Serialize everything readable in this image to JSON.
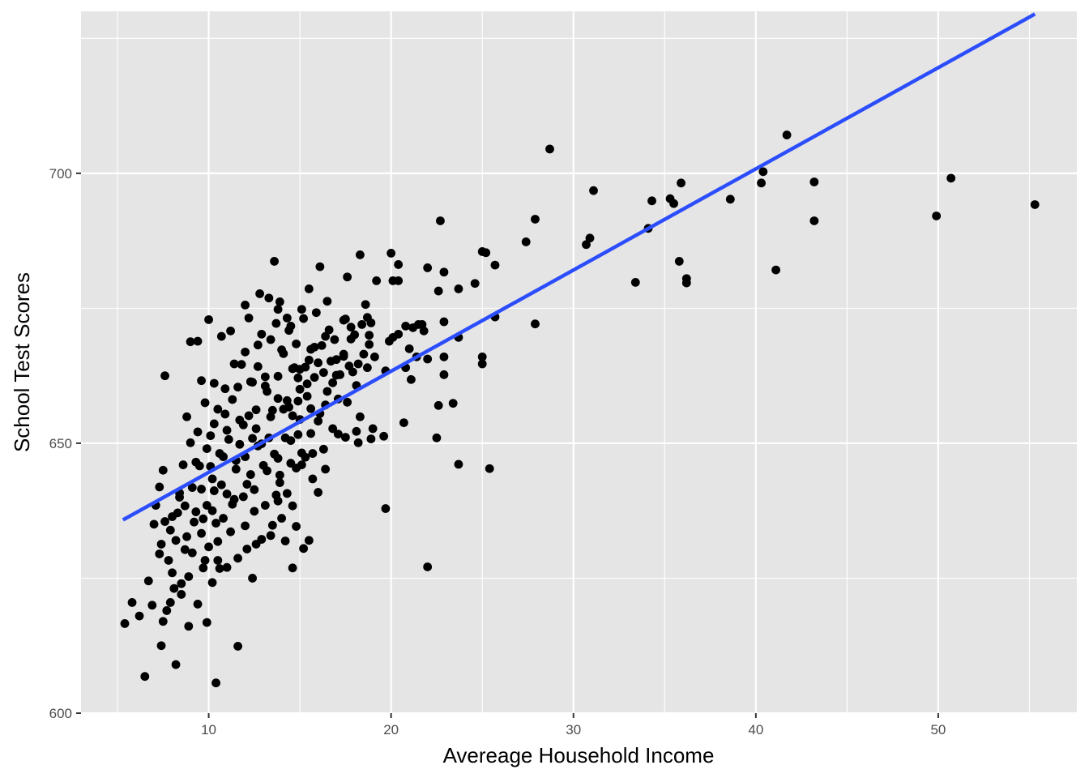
{
  "chart_data": {
    "type": "scatter",
    "title": "",
    "xlabel": "Avereage Household Income",
    "ylabel": "School Test Scores",
    "xlim": [
      3.0,
      57.6
    ],
    "ylim": [
      600,
      730
    ],
    "x_ticks": [
      10,
      20,
      30,
      40,
      50
    ],
    "x_tick_labels": [
      "10",
      "20",
      "30",
      "40",
      "50"
    ],
    "y_ticks": [
      600,
      650,
      700
    ],
    "y_tick_labels": [
      "600",
      "650",
      "700"
    ],
    "grid": true,
    "legend": "none",
    "colors": {
      "panel": "#e5e5e5",
      "grid": "#ffffff",
      "points": "#000000",
      "fit_line": "#2b4dfc",
      "tick_label": "#4d4d4d"
    },
    "fit_line": {
      "type": "linear regression",
      "x": [
        5.3,
        55.3
      ],
      "y": [
        635.8,
        729.5
      ]
    },
    "points": [
      [
        55.3,
        694.2
      ],
      [
        50.7,
        699.1
      ],
      [
        49.9,
        692.1
      ],
      [
        43.2,
        698.4
      ],
      [
        43.2,
        691.2
      ],
      [
        41.7,
        707.1
      ],
      [
        41.1,
        682.1
      ],
      [
        40.4,
        700.3
      ],
      [
        40.3,
        698.2
      ],
      [
        38.6,
        695.2
      ],
      [
        36.2,
        680.5
      ],
      [
        36.2,
        679.7
      ],
      [
        35.9,
        698.2
      ],
      [
        35.8,
        683.7
      ],
      [
        35.5,
        694.4
      ],
      [
        35.3,
        695.3
      ],
      [
        34.3,
        694.9
      ],
      [
        34.1,
        689.8
      ],
      [
        33.4,
        679.8
      ],
      [
        31.1,
        696.8
      ],
      [
        30.9,
        688.0
      ],
      [
        30.7,
        686.8
      ],
      [
        28.7,
        704.5
      ],
      [
        27.9,
        672.1
      ],
      [
        27.9,
        691.5
      ],
      [
        27.4,
        687.3
      ],
      [
        25.7,
        683.0
      ],
      [
        25.7,
        673.4
      ],
      [
        25.4,
        645.3
      ],
      [
        25.2,
        685.3
      ],
      [
        25.0,
        685.5
      ],
      [
        25.0,
        666.0
      ],
      [
        25.0,
        664.7
      ],
      [
        24.6,
        679.6
      ],
      [
        23.7,
        678.6
      ],
      [
        23.7,
        669.6
      ],
      [
        23.7,
        646.1
      ],
      [
        23.4,
        657.4
      ],
      [
        22.9,
        681.7
      ],
      [
        22.9,
        672.5
      ],
      [
        22.9,
        666.0
      ],
      [
        22.9,
        662.7
      ],
      [
        22.7,
        691.2
      ],
      [
        22.6,
        678.2
      ],
      [
        22.6,
        657.0
      ],
      [
        22.5,
        651.0
      ],
      [
        22.0,
        682.5
      ],
      [
        22.0,
        665.6
      ],
      [
        22.0,
        627.1
      ],
      [
        21.8,
        670.8
      ],
      [
        21.7,
        672.0
      ],
      [
        21.5,
        672.0
      ],
      [
        21.4,
        666.0
      ],
      [
        21.2,
        671.4
      ],
      [
        21.1,
        661.8
      ],
      [
        21.0,
        667.5
      ],
      [
        20.8,
        671.7
      ],
      [
        20.8,
        664.0
      ],
      [
        20.7,
        653.8
      ],
      [
        20.4,
        683.1
      ],
      [
        20.4,
        680.1
      ],
      [
        20.4,
        670.2
      ],
      [
        20.1,
        680.1
      ],
      [
        20.1,
        669.6
      ],
      [
        20.0,
        685.2
      ],
      [
        19.9,
        668.9
      ],
      [
        19.7,
        663.4
      ],
      [
        19.7,
        637.9
      ],
      [
        19.6,
        651.3
      ],
      [
        19.2,
        680.1
      ],
      [
        19.1,
        666.0
      ],
      [
        18.9,
        672.3
      ],
      [
        18.8,
        670.0
      ],
      [
        18.8,
        668.3
      ],
      [
        18.7,
        664.0
      ],
      [
        18.6,
        675.7
      ],
      [
        18.5,
        666.5
      ],
      [
        18.4,
        672.0
      ],
      [
        18.3,
        684.9
      ],
      [
        18.2,
        664.7
      ],
      [
        18.1,
        660.7
      ],
      [
        18.1,
        652.2
      ],
      [
        17.9,
        663.2
      ],
      [
        17.8,
        671.5
      ],
      [
        17.8,
        669.3
      ],
      [
        17.6,
        680.8
      ],
      [
        17.5,
        673.0
      ],
      [
        17.4,
        666.5
      ],
      [
        17.2,
        662.7
      ],
      [
        17.1,
        651.7
      ],
      [
        17.0,
        665.5
      ],
      [
        16.8,
        661.2
      ],
      [
        16.5,
        676.3
      ],
      [
        16.4,
        669.8
      ],
      [
        16.3,
        663.1
      ],
      [
        16.1,
        682.7
      ],
      [
        16.0,
        654.1
      ],
      [
        16.0,
        640.9
      ],
      [
        15.8,
        667.8
      ],
      [
        15.5,
        678.6
      ],
      [
        15.5,
        665.4
      ],
      [
        15.4,
        658.7
      ],
      [
        15.3,
        647.4
      ],
      [
        15.1,
        674.8
      ],
      [
        15.0,
        663.7
      ],
      [
        15.0,
        660.0
      ],
      [
        14.9,
        651.6
      ],
      [
        14.8,
        645.4
      ],
      [
        14.7,
        664.0
      ],
      [
        14.6,
        655.1
      ],
      [
        14.6,
        626.9
      ],
      [
        14.4,
        670.9
      ],
      [
        14.3,
        657.9
      ],
      [
        14.2,
        651.0
      ],
      [
        14.0,
        667.3
      ],
      [
        13.9,
        644.1
      ],
      [
        13.8,
        674.8
      ],
      [
        13.8,
        639.3
      ],
      [
        13.6,
        683.7
      ],
      [
        13.5,
        656.1
      ],
      [
        13.4,
        632.9
      ],
      [
        13.3,
        676.9
      ],
      [
        13.1,
        662.3
      ],
      [
        13.0,
        645.9
      ],
      [
        12.8,
        677.7
      ],
      [
        12.7,
        668.2
      ],
      [
        12.6,
        656.2
      ],
      [
        12.5,
        637.4
      ],
      [
        12.4,
        650.9
      ],
      [
        12.4,
        625.0
      ],
      [
        12.3,
        661.4
      ],
      [
        12.1,
        642.4
      ],
      [
        12.0,
        675.6
      ],
      [
        11.8,
        664.6
      ],
      [
        11.7,
        654.3
      ],
      [
        11.6,
        628.7
      ],
      [
        11.6,
        612.4
      ],
      [
        11.5,
        645.2
      ],
      [
        11.3,
        658.1
      ],
      [
        11.2,
        670.8
      ],
      [
        11.0,
        640.6
      ],
      [
        10.9,
        655.4
      ],
      [
        10.7,
        669.8
      ],
      [
        10.6,
        648.1
      ],
      [
        10.5,
        631.8
      ],
      [
        10.4,
        605.6
      ],
      [
        10.3,
        661.1
      ],
      [
        10.2,
        643.4
      ],
      [
        10.1,
        651.4
      ],
      [
        10.0,
        672.9
      ],
      [
        9.9,
        638.5
      ],
      [
        9.8,
        657.5
      ],
      [
        9.7,
        626.9
      ],
      [
        9.6,
        661.6
      ],
      [
        9.5,
        645.8
      ],
      [
        9.4,
        668.9
      ],
      [
        9.3,
        637.3
      ],
      [
        9.1,
        641.8
      ],
      [
        9.0,
        668.8
      ],
      [
        8.9,
        616.1
      ],
      [
        8.8,
        654.9
      ],
      [
        8.7,
        630.3
      ],
      [
        8.5,
        624.0
      ],
      [
        8.4,
        640.0
      ],
      [
        8.2,
        609.0
      ],
      [
        8.2,
        632.0
      ],
      [
        8.0,
        626.0
      ],
      [
        7.9,
        620.5
      ],
      [
        7.7,
        619.0
      ],
      [
        7.6,
        662.5
      ],
      [
        7.5,
        645.0
      ],
      [
        7.5,
        617.0
      ],
      [
        7.4,
        612.5
      ],
      [
        7.3,
        629.5
      ],
      [
        7.1,
        638.5
      ],
      [
        6.9,
        620.0
      ],
      [
        6.7,
        624.5
      ],
      [
        6.5,
        606.8
      ],
      [
        6.2,
        618.0
      ],
      [
        5.8,
        620.5
      ],
      [
        5.4,
        616.6
      ],
      [
        9.8,
        628.3
      ],
      [
        10.4,
        635.2
      ],
      [
        11.2,
        633.6
      ],
      [
        12.1,
        630.4
      ],
      [
        12.9,
        632.2
      ],
      [
        13.5,
        634.8
      ],
      [
        14.2,
        631.9
      ],
      [
        14.8,
        634.6
      ],
      [
        15.2,
        630.5
      ],
      [
        15.5,
        632.0
      ],
      [
        10.1,
        645.7
      ],
      [
        10.8,
        647.5
      ],
      [
        11.5,
        646.8
      ],
      [
        12.3,
        644.2
      ],
      [
        13.2,
        644.9
      ],
      [
        13.9,
        642.7
      ],
      [
        14.5,
        646.3
      ],
      [
        15.1,
        648.2
      ],
      [
        15.7,
        648.1
      ],
      [
        16.3,
        648.9
      ],
      [
        10.3,
        653.6
      ],
      [
        11.0,
        652.4
      ],
      [
        11.9,
        653.4
      ],
      [
        12.6,
        652.7
      ],
      [
        13.4,
        654.9
      ],
      [
        14.1,
        656.3
      ],
      [
        14.9,
        657.8
      ],
      [
        15.6,
        656.4
      ],
      [
        16.4,
        657.1
      ],
      [
        17.1,
        658.2
      ],
      [
        9.2,
        635.4
      ],
      [
        9.6,
        641.5
      ],
      [
        10.2,
        637.5
      ],
      [
        10.7,
        642.3
      ],
      [
        11.3,
        638.7
      ],
      [
        11.9,
        640.1
      ],
      [
        12.5,
        641.4
      ],
      [
        13.1,
        638.5
      ],
      [
        13.7,
        640.4
      ],
      [
        14.3,
        640.7
      ],
      [
        8.6,
        646.0
      ],
      [
        9.0,
        650.1
      ],
      [
        9.4,
        652.1
      ],
      [
        9.9,
        649.0
      ],
      [
        10.5,
        656.3
      ],
      [
        11.1,
        650.7
      ],
      [
        11.7,
        649.8
      ],
      [
        12.2,
        655.1
      ],
      [
        12.9,
        649.9
      ],
      [
        13.6,
        648.0
      ],
      [
        10.9,
        660.1
      ],
      [
        11.6,
        660.4
      ],
      [
        12.4,
        661.3
      ],
      [
        13.1,
        660.6
      ],
      [
        13.8,
        662.4
      ],
      [
        14.6,
        663.8
      ],
      [
        15.3,
        664.1
      ],
      [
        16.0,
        664.9
      ],
      [
        16.7,
        665.2
      ],
      [
        17.4,
        666.1
      ],
      [
        11.4,
        664.7
      ],
      [
        12.0,
        666.9
      ],
      [
        12.7,
        664.2
      ],
      [
        13.4,
        669.2
      ],
      [
        14.1,
        666.6
      ],
      [
        14.8,
        668.4
      ],
      [
        15.6,
        667.4
      ],
      [
        16.2,
        668.1
      ],
      [
        16.9,
        669.2
      ],
      [
        17.7,
        664.3
      ],
      [
        12.2,
        673.2
      ],
      [
        12.9,
        670.2
      ],
      [
        13.7,
        672.2
      ],
      [
        14.5,
        671.7
      ],
      [
        15.2,
        673.1
      ],
      [
        15.9,
        674.2
      ],
      [
        16.6,
        671.0
      ],
      [
        17.4,
        672.8
      ],
      [
        18.0,
        670.1
      ],
      [
        18.7,
        673.3
      ],
      [
        7.3,
        641.9
      ],
      [
        7.6,
        635.5
      ],
      [
        7.9,
        633.9
      ],
      [
        8.3,
        637.1
      ],
      [
        8.7,
        638.4
      ],
      [
        9.1,
        629.7
      ],
      [
        9.6,
        633.3
      ],
      [
        10.0,
        630.8
      ],
      [
        10.5,
        628.3
      ],
      [
        11.0,
        627.0
      ],
      [
        7.0,
        635.0
      ],
      [
        7.4,
        631.3
      ],
      [
        7.8,
        628.3
      ],
      [
        8.1,
        623.1
      ],
      [
        8.5,
        622.0
      ],
      [
        8.9,
        625.3
      ],
      [
        9.4,
        620.2
      ],
      [
        9.9,
        616.8
      ],
      [
        10.2,
        624.2
      ],
      [
        10.6,
        626.8
      ],
      [
        8.0,
        636.4
      ],
      [
        8.4,
        640.8
      ],
      [
        8.8,
        632.7
      ],
      [
        9.3,
        646.5
      ],
      [
        9.7,
        636.0
      ],
      [
        10.3,
        641.2
      ],
      [
        10.8,
        636.1
      ],
      [
        11.4,
        639.6
      ],
      [
        12.0,
        634.7
      ],
      [
        12.6,
        631.3
      ],
      [
        13.9,
        676.2
      ],
      [
        14.3,
        673.2
      ],
      [
        14.9,
        662.1
      ],
      [
        15.4,
        661.0
      ],
      [
        15.8,
        662.2
      ],
      [
        16.5,
        659.6
      ],
      [
        17.0,
        662.6
      ],
      [
        17.6,
        657.6
      ],
      [
        18.3,
        654.9
      ],
      [
        19.0,
        652.7
      ],
      [
        13.2,
        659.6
      ],
      [
        13.8,
        658.3
      ],
      [
        14.4,
        656.7
      ],
      [
        15.0,
        654.4
      ],
      [
        15.6,
        651.8
      ],
      [
        16.1,
        655.5
      ],
      [
        16.8,
        652.7
      ],
      [
        17.5,
        651.1
      ],
      [
        18.2,
        650.1
      ],
      [
        18.9,
        650.8
      ],
      [
        12.0,
        647.5
      ],
      [
        12.7,
        649.5
      ],
      [
        13.3,
        651.0
      ],
      [
        13.8,
        647.2
      ],
      [
        14.5,
        650.5
      ],
      [
        15.1,
        646.0
      ],
      [
        15.7,
        643.4
      ],
      [
        16.4,
        645.2
      ],
      [
        14.0,
        636.1
      ],
      [
        14.6,
        638.4
      ]
    ]
  }
}
